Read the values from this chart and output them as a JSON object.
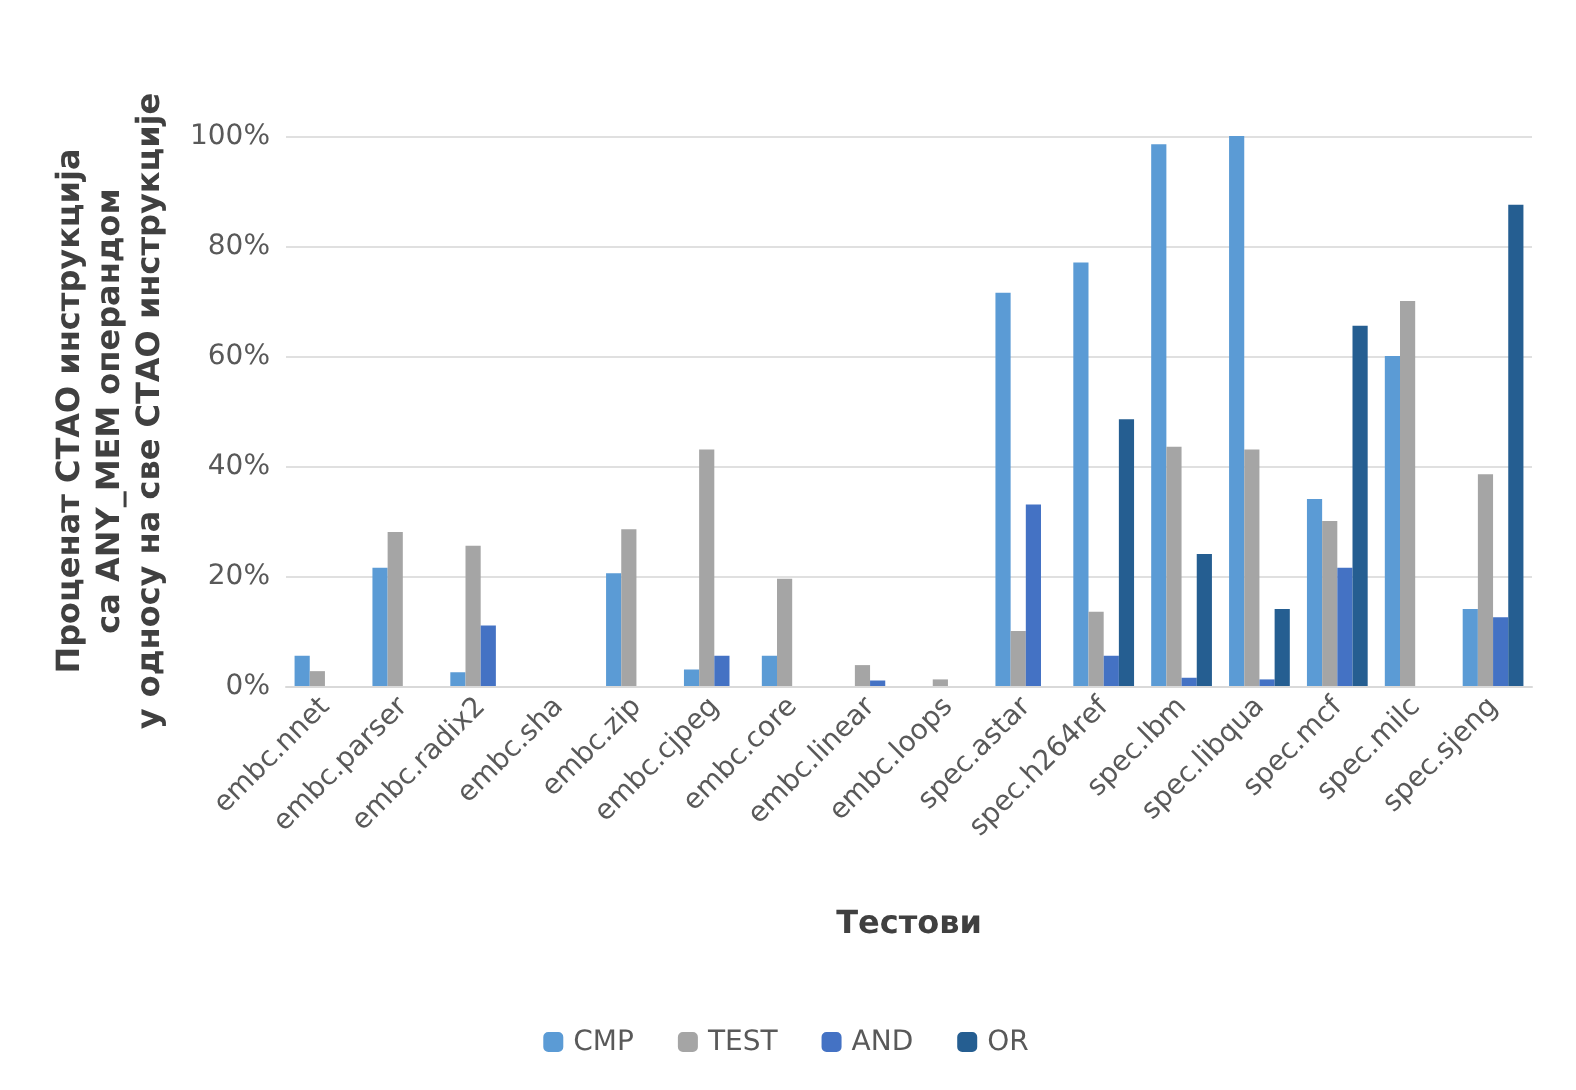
{
  "chart_data": {
    "type": "bar",
    "xlabel": "Тестови",
    "ylabel": "Проценат СТАО инструкција\nса ANY_MEM операндом\nу односу на све СТАО инструкције",
    "categories": [
      "embc.nnet",
      "embc.parser",
      "embc.radix2",
      "embc.sha",
      "embc.zip",
      "embc.cjpeg",
      "embc.core",
      "embc.linear",
      "embc.loops",
      "spec.astar",
      "spec.h264ref",
      "spec.lbm",
      "spec.libqua",
      "spec.mcf",
      "spec.milc",
      "spec.sjeng"
    ],
    "series": [
      {
        "name": "CMP",
        "color": "#5b9bd5",
        "values": [
          5.5,
          21.5,
          2.5,
          0,
          20.5,
          3,
          5.5,
          0,
          0,
          71.5,
          77,
          98.5,
          100,
          34,
          60,
          14
        ]
      },
      {
        "name": "TEST",
        "color": "#a5a5a5",
        "values": [
          2.7,
          28,
          25.5,
          0,
          28.5,
          43,
          19.5,
          3.8,
          1.2,
          10,
          13.5,
          43.5,
          43,
          30,
          70,
          38.5
        ]
      },
      {
        "name": "AND",
        "color": "#4472c4",
        "values": [
          0,
          0,
          11,
          0,
          0,
          5.5,
          0,
          1,
          0,
          33,
          5.5,
          1.5,
          1.2,
          21.5,
          0,
          12.5
        ]
      },
      {
        "name": "OR",
        "color": "#255e91",
        "values": [
          0,
          0,
          0,
          0,
          0,
          0,
          0,
          0,
          0,
          0,
          48.5,
          24,
          14,
          65.5,
          0,
          87.5
        ]
      }
    ],
    "ylim": [
      0,
      100
    ],
    "yticks": [
      {
        "value": 0,
        "label": "0%"
      },
      {
        "value": 20,
        "label": "20%"
      },
      {
        "value": 40,
        "label": "40%"
      },
      {
        "value": 60,
        "label": "60%"
      },
      {
        "value": 80,
        "label": "80%"
      },
      {
        "value": 100,
        "label": "100%"
      }
    ],
    "grid": "y",
    "legend": "bottom"
  }
}
